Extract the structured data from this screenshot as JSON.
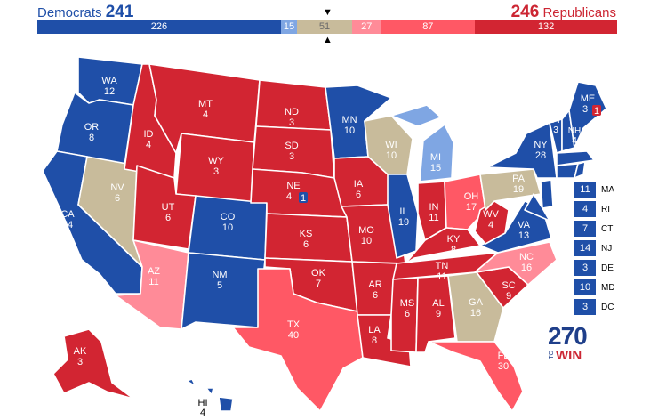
{
  "header": {
    "dem_label": "Democrats",
    "dem_total": "241",
    "rep_total": "246",
    "rep_label": "Republicans",
    "marker_down": "▼",
    "marker_up": "▲"
  },
  "colors": {
    "safe_d": "#1f4fa8",
    "likely_d": "#2b63b8",
    "lean_d": "#7fa6e3",
    "tossup": "#c8bb9b",
    "lean_r": "#ff8b98",
    "likely_r": "#ff5865",
    "safe_r": "#d22532"
  },
  "bar": {
    "segments": [
      {
        "value": "226",
        "color": "#1f4fa8"
      },
      {
        "value": "15",
        "color": "#7fa6e3"
      },
      {
        "value": "51",
        "color": "#c8bb9b"
      },
      {
        "value": "27",
        "color": "#ff8b98"
      },
      {
        "value": "87",
        "color": "#ff5865"
      },
      {
        "value": "132",
        "color": "#d22532"
      }
    ]
  },
  "states": {
    "WA": {
      "abbr": "WA",
      "ev": "12"
    },
    "OR": {
      "abbr": "OR",
      "ev": "8"
    },
    "CA": {
      "abbr": "CA",
      "ev": "54"
    },
    "NV": {
      "abbr": "NV",
      "ev": "6"
    },
    "ID": {
      "abbr": "ID",
      "ev": "4"
    },
    "MT": {
      "abbr": "MT",
      "ev": "4"
    },
    "WY": {
      "abbr": "WY",
      "ev": "3"
    },
    "UT": {
      "abbr": "UT",
      "ev": "6"
    },
    "CO": {
      "abbr": "CO",
      "ev": "10"
    },
    "AZ": {
      "abbr": "AZ",
      "ev": "11"
    },
    "NM": {
      "abbr": "NM",
      "ev": "5"
    },
    "ND": {
      "abbr": "ND",
      "ev": "3"
    },
    "SD": {
      "abbr": "SD",
      "ev": "3"
    },
    "NE": {
      "abbr": "NE",
      "ev": "4",
      "district": "1"
    },
    "KS": {
      "abbr": "KS",
      "ev": "6"
    },
    "OK": {
      "abbr": "OK",
      "ev": "7"
    },
    "TX": {
      "abbr": "TX",
      "ev": "40"
    },
    "MN": {
      "abbr": "MN",
      "ev": "10"
    },
    "IA": {
      "abbr": "IA",
      "ev": "6"
    },
    "MO": {
      "abbr": "MO",
      "ev": "10"
    },
    "AR": {
      "abbr": "AR",
      "ev": "6"
    },
    "LA": {
      "abbr": "LA",
      "ev": "8"
    },
    "WI": {
      "abbr": "WI",
      "ev": "10"
    },
    "IL": {
      "abbr": "IL",
      "ev": "19"
    },
    "MI": {
      "abbr": "MI",
      "ev": "15"
    },
    "IN": {
      "abbr": "IN",
      "ev": "11"
    },
    "OH": {
      "abbr": "OH",
      "ev": "17"
    },
    "KY": {
      "abbr": "KY",
      "ev": "8"
    },
    "TN": {
      "abbr": "TN",
      "ev": "11"
    },
    "MS": {
      "abbr": "MS",
      "ev": "6"
    },
    "AL": {
      "abbr": "AL",
      "ev": "9"
    },
    "GA": {
      "abbr": "GA",
      "ev": "16"
    },
    "FL": {
      "abbr": "FL",
      "ev": "30"
    },
    "SC": {
      "abbr": "SC",
      "ev": "9"
    },
    "NC": {
      "abbr": "NC",
      "ev": "16"
    },
    "VA": {
      "abbr": "VA",
      "ev": "13"
    },
    "WV": {
      "abbr": "WV",
      "ev": "4"
    },
    "PA": {
      "abbr": "PA",
      "ev": "19"
    },
    "NY": {
      "abbr": "NY",
      "ev": "28"
    },
    "VT": {
      "abbr": "VT",
      "ev": "3"
    },
    "NH": {
      "abbr": "NH",
      "ev": "4"
    },
    "ME": {
      "abbr": "ME",
      "ev": "3",
      "district": "1"
    },
    "AK": {
      "abbr": "AK",
      "ev": "3"
    },
    "HI": {
      "abbr": "HI",
      "ev": "4"
    }
  },
  "small_states": [
    {
      "ev": "11",
      "abbr": "MA"
    },
    {
      "ev": "4",
      "abbr": "RI"
    },
    {
      "ev": "7",
      "abbr": "CT"
    },
    {
      "ev": "14",
      "abbr": "NJ"
    },
    {
      "ev": "3",
      "abbr": "DE"
    },
    {
      "ev": "10",
      "abbr": "MD"
    },
    {
      "ev": "3",
      "abbr": "DC"
    }
  ],
  "logo": {
    "number": "270",
    "to": "TO",
    "win": "WIN"
  }
}
